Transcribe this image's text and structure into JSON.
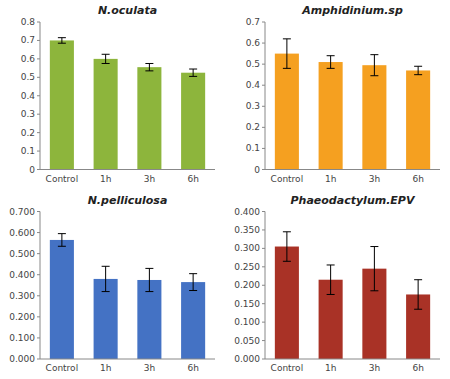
{
  "chart_data": [
    {
      "type": "bar",
      "title": "N.oculata",
      "color": "#8DB53C",
      "categories": [
        "Control",
        "1h",
        "3h",
        "6h"
      ],
      "values": [
        0.7,
        0.6,
        0.555,
        0.525
      ],
      "errors": [
        0.015,
        0.025,
        0.02,
        0.02
      ],
      "ylim": [
        0,
        0.8
      ],
      "yticks": [
        0,
        0.1,
        0.2,
        0.3,
        0.4,
        0.5,
        0.6,
        0.7,
        0.8
      ]
    },
    {
      "type": "bar",
      "title": "Amphidinium.sp",
      "color": "#F5A020",
      "categories": [
        "Control",
        "1h",
        "3h",
        "6h"
      ],
      "values": [
        0.55,
        0.51,
        0.495,
        0.47
      ],
      "errors": [
        0.07,
        0.03,
        0.05,
        0.02
      ],
      "ylim": [
        0,
        0.7
      ],
      "yticks": [
        0,
        0.1,
        0.2,
        0.3,
        0.4,
        0.5,
        0.6,
        0.7
      ]
    },
    {
      "type": "bar",
      "title": "N.pelliculosa",
      "color": "#4472C4",
      "categories": [
        "Control",
        "1h",
        "3h",
        "6h"
      ],
      "values": [
        0.565,
        0.38,
        0.375,
        0.365
      ],
      "errors": [
        0.03,
        0.06,
        0.055,
        0.04
      ],
      "ylim": [
        0,
        0.7
      ],
      "yticks": [
        {
          "value": 0,
          "label": "0.000"
        },
        {
          "value": 0.1,
          "label": "0.100"
        },
        {
          "value": 0.2,
          "label": "0.200"
        },
        {
          "value": 0.3,
          "label": "0.300"
        },
        {
          "value": 0.4,
          "label": "0.400"
        },
        {
          "value": 0.5,
          "label": "0.500"
        },
        {
          "value": 0.6,
          "label": "0.600"
        },
        {
          "value": 0.7,
          "label": "0.700"
        }
      ]
    },
    {
      "type": "bar",
      "title": "Phaeodactylum.EPV",
      "color": "#A93226",
      "categories": [
        "Control",
        "1h",
        "3h",
        "6h"
      ],
      "values": [
        0.305,
        0.215,
        0.245,
        0.175
      ],
      "errors": [
        0.04,
        0.04,
        0.06,
        0.04
      ],
      "ylim": [
        0,
        0.4
      ],
      "yticks": [
        {
          "value": 0,
          "label": "0.000"
        },
        {
          "value": 0.05,
          "label": "0.050"
        },
        {
          "value": 0.1,
          "label": "0.100"
        },
        {
          "value": 0.15,
          "label": "0.150"
        },
        {
          "value": 0.2,
          "label": "0.200"
        },
        {
          "value": 0.25,
          "label": "0.250"
        },
        {
          "value": 0.3,
          "label": "0.300"
        },
        {
          "value": 0.35,
          "label": "0.350"
        },
        {
          "value": 0.4,
          "label": "0.400"
        }
      ]
    }
  ]
}
